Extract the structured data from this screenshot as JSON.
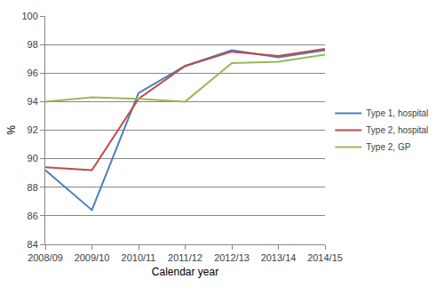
{
  "chart_data": {
    "type": "line",
    "categories": [
      "2008/09",
      "2009/10",
      "2010/11",
      "2011/12",
      "2012/13",
      "2013/14",
      "2014/15"
    ],
    "series": [
      {
        "name": "Type 1, hospital",
        "color": "#4a7ebb",
        "values": [
          89.2,
          86.4,
          94.6,
          96.5,
          97.6,
          97.1,
          97.6
        ]
      },
      {
        "name": "Type 2, hospital",
        "color": "#be4b48",
        "values": [
          89.4,
          89.2,
          94.2,
          96.5,
          97.5,
          97.2,
          97.7
        ]
      },
      {
        "name": "Type 2, GP",
        "color": "#98b954",
        "values": [
          94.0,
          94.3,
          94.2,
          94.0,
          96.7,
          96.8,
          97.3
        ]
      }
    ],
    "x_label": "Calendar year",
    "y_label": "%",
    "ylim": [
      84,
      100
    ],
    "yticks": [
      84,
      86,
      88,
      90,
      92,
      94,
      96,
      98,
      100
    ],
    "grid": true,
    "legend": "right"
  }
}
